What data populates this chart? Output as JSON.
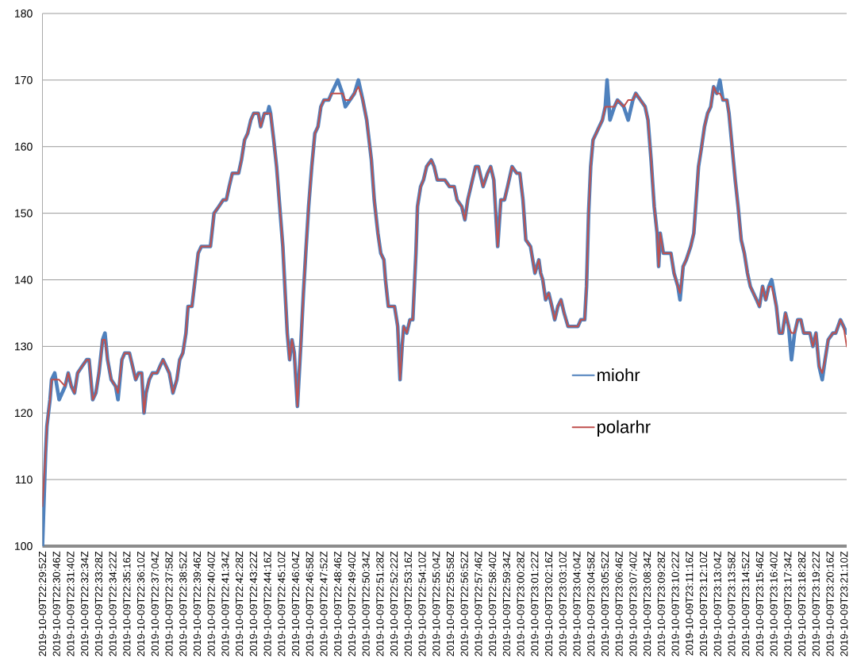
{
  "chart_data": {
    "type": "line",
    "x": [
      "2019-10-09T22:29:52",
      "2019-10-09T22:30:04",
      "2019-10-09T22:30:09",
      "2019-10-09T22:30:21",
      "2019-10-09T22:30:27",
      "2019-10-09T22:30:39",
      "2019-10-09T22:30:56",
      "2019-10-09T22:31:19",
      "2019-10-09T22:31:31",
      "2019-10-09T22:31:43",
      "2019-10-09T22:31:55",
      "2019-10-09T22:32:07",
      "2019-10-09T22:32:24",
      "2019-10-09T22:32:42",
      "2019-10-09T22:32:51",
      "2019-10-09T22:33:05",
      "2019-10-09T22:33:17",
      "2019-10-09T22:33:29",
      "2019-10-09T22:33:43",
      "2019-10-09T22:33:52",
      "2019-10-09T22:34:02",
      "2019-10-09T22:34:16",
      "2019-10-09T22:34:33",
      "2019-10-09T22:34:42",
      "2019-10-09T22:34:57",
      "2019-10-09T22:35:08",
      "2019-10-09T22:35:26",
      "2019-10-09T22:35:38",
      "2019-10-09T22:35:50",
      "2019-10-09T22:36:01",
      "2019-10-09T22:36:13",
      "2019-10-09T22:36:22",
      "2019-10-09T22:36:30",
      "2019-10-09T22:36:42",
      "2019-10-09T22:36:54",
      "2019-10-09T22:37:12",
      "2019-10-09T22:37:23",
      "2019-10-09T22:37:35",
      "2019-10-09T22:37:47",
      "2019-10-09T22:37:59",
      "2019-10-09T22:38:13",
      "2019-10-09T22:38:28",
      "2019-10-09T22:38:39",
      "2019-10-09T22:38:51",
      "2019-10-09T22:39:03",
      "2019-10-09T22:39:11",
      "2019-10-09T22:39:26",
      "2019-10-09T22:39:38",
      "2019-10-09T22:39:50",
      "2019-10-09T22:40:02",
      "2019-10-09T22:40:37",
      "2019-10-09T22:40:51",
      "2019-10-09T22:41:09",
      "2019-10-09T22:41:26",
      "2019-10-09T22:41:38",
      "2019-10-09T22:41:49",
      "2019-10-09T22:42:01",
      "2019-10-09T22:42:25",
      "2019-10-09T22:42:36",
      "2019-10-09T22:42:48",
      "2019-10-09T22:43:00",
      "2019-10-09T22:43:12",
      "2019-10-09T22:43:23",
      "2019-10-09T22:43:41",
      "2019-10-09T22:43:50",
      "2019-10-09T22:44:04",
      "2019-10-09T22:44:16",
      "2019-10-09T22:44:22",
      "2019-10-09T22:44:28",
      "2019-10-09T22:44:40",
      "2019-10-09T22:44:51",
      "2019-10-09T22:45:03",
      "2019-10-09T22:45:15",
      "2019-10-09T22:45:24",
      "2019-10-09T22:45:32",
      "2019-10-09T22:45:41",
      "2019-10-09T22:45:50",
      "2019-10-09T22:45:59",
      "2019-10-09T22:46:11",
      "2019-10-09T22:46:25",
      "2019-10-09T22:46:34",
      "2019-10-09T22:46:43",
      "2019-10-09T22:46:54",
      "2019-10-09T22:47:06",
      "2019-10-09T22:47:18",
      "2019-10-09T22:47:30",
      "2019-10-09T22:47:41",
      "2019-10-09T22:47:53",
      "2019-10-09T22:48:11",
      "2019-10-09T22:48:22",
      "2019-10-09T22:48:46",
      "2019-10-09T22:49:04",
      "2019-10-09T22:49:15",
      "2019-10-09T22:49:33",
      "2019-10-09T22:49:50",
      "2019-10-09T22:50:05",
      "2019-10-09T22:50:22",
      "2019-10-09T22:50:37",
      "2019-10-09T22:50:55",
      "2019-10-09T22:51:06",
      "2019-10-09T22:51:20",
      "2019-10-09T22:51:31",
      "2019-10-09T22:51:43",
      "2019-10-09T22:51:49",
      "2019-10-09T22:52:00",
      "2019-10-09T22:52:24",
      "2019-10-09T22:52:36",
      "2019-10-09T22:52:45",
      "2019-10-09T22:52:53",
      "2019-10-09T22:52:59",
      "2019-10-09T22:53:11",
      "2019-10-09T22:53:23",
      "2019-10-09T22:53:34",
      "2019-10-09T22:53:46",
      "2019-10-09T22:53:52",
      "2019-10-09T22:54:04",
      "2019-10-09T22:54:15",
      "2019-10-09T22:54:27",
      "2019-10-09T22:54:45",
      "2019-10-09T22:54:56",
      "2019-10-09T22:55:08",
      "2019-10-09T22:55:37",
      "2019-10-09T22:55:55",
      "2019-10-09T22:56:13",
      "2019-10-09T22:56:24",
      "2019-10-09T22:56:42",
      "2019-10-09T22:56:54",
      "2019-10-09T22:57:05",
      "2019-10-09T22:57:17",
      "2019-10-09T22:57:35",
      "2019-10-09T22:57:46",
      "2019-10-09T22:58:04",
      "2019-10-09T22:58:21",
      "2019-10-09T22:58:33",
      "2019-10-09T22:58:45",
      "2019-10-09T22:59:00",
      "2019-10-09T22:59:12",
      "2019-10-09T22:59:26",
      "2019-10-09T22:59:38",
      "2019-10-09T22:59:55",
      "2019-10-09T23:00:13",
      "2019-10-09T23:00:25",
      "2019-10-09T23:00:37",
      "2019-10-09T23:00:48",
      "2019-10-09T23:01:06",
      "2019-10-09T23:01:23",
      "2019-10-09T23:01:38",
      "2019-10-09T23:01:45",
      "2019-10-09T23:01:53",
      "2019-10-09T23:02:04",
      "2019-10-09T23:02:16",
      "2019-10-09T23:02:28",
      "2019-10-09T23:02:39",
      "2019-10-09T23:02:51",
      "2019-10-09T23:03:03",
      "2019-10-09T23:03:15",
      "2019-10-09T23:03:30",
      "2019-10-09T23:04:08",
      "2019-10-09T23:04:19",
      "2019-10-09T23:04:34",
      "2019-10-09T23:04:41",
      "2019-10-09T23:04:49",
      "2019-10-09T23:04:57",
      "2019-10-09T23:05:06",
      "2019-10-09T23:05:18",
      "2019-10-09T23:05:30",
      "2019-10-09T23:05:42",
      "2019-10-09T23:05:53",
      "2019-10-09T23:06:00",
      "2019-10-09T23:06:11",
      "2019-10-09T23:06:28",
      "2019-10-09T23:06:40",
      "2019-10-09T23:07:04",
      "2019-10-09T23:07:21",
      "2019-10-09T23:07:39",
      "2019-10-09T23:07:50",
      "2019-10-09T23:08:08",
      "2019-10-09T23:08:26",
      "2019-10-09T23:08:37",
      "2019-10-09T23:08:49",
      "2019-10-09T23:09:01",
      "2019-10-09T23:09:12",
      "2019-10-09T23:09:18",
      "2019-10-09T23:09:24",
      "2019-10-09T23:09:36",
      "2019-10-09T23:09:48",
      "2019-10-09T23:10:05",
      "2019-10-09T23:10:17",
      "2019-10-09T23:10:32",
      "2019-10-09T23:10:40",
      "2019-10-09T23:10:52",
      "2019-10-09T23:11:04",
      "2019-10-09T23:11:21",
      "2019-10-09T23:11:33",
      "2019-10-09T23:11:42",
      "2019-10-09T23:11:51",
      "2019-10-09T23:12:03",
      "2019-10-09T23:12:14",
      "2019-10-09T23:12:26",
      "2019-10-09T23:12:38",
      "2019-10-09T23:12:49",
      "2019-10-09T23:13:01",
      "2019-10-09T23:13:13",
      "2019-10-09T23:13:25",
      "2019-10-09T23:13:40",
      "2019-10-09T23:13:48",
      "2019-10-09T23:14:00",
      "2019-10-09T23:14:12",
      "2019-10-09T23:14:23",
      "2019-10-09T23:14:35",
      "2019-10-09T23:14:47",
      "2019-10-09T23:14:59",
      "2019-10-09T23:15:10",
      "2019-10-09T23:15:22",
      "2019-10-09T23:15:34",
      "2019-10-09T23:15:45",
      "2019-10-09T23:15:57",
      "2019-10-09T23:16:09",
      "2019-10-09T23:16:21",
      "2019-10-09T23:16:32",
      "2019-10-09T23:16:50",
      "2019-10-09T23:17:01",
      "2019-10-09T23:17:13",
      "2019-10-09T23:17:25",
      "2019-10-09T23:17:37",
      "2019-10-09T23:17:48",
      "2019-10-09T23:18:00",
      "2019-10-09T23:18:12",
      "2019-10-09T23:18:24",
      "2019-10-09T23:18:35",
      "2019-10-09T23:18:59",
      "2019-10-09T23:19:10",
      "2019-10-09T23:19:22",
      "2019-10-09T23:19:34",
      "2019-10-09T23:19:46",
      "2019-10-09T23:19:57",
      "2019-10-09T23:20:09",
      "2019-10-09T23:20:27",
      "2019-10-09T23:20:38",
      "2019-10-09T23:20:56",
      "2019-10-09T23:21:08",
      "2019-10-09T23:21:20"
    ],
    "series": [
      {
        "name": "miohr",
        "color": "#4f81bd",
        "values": [
          100,
          114,
          118,
          122,
          125,
          126,
          122,
          124,
          126,
          124,
          123,
          126,
          127,
          128,
          128,
          122,
          123,
          126,
          131,
          132,
          128,
          125,
          124,
          122,
          128,
          129,
          129,
          127,
          125,
          126,
          126,
          120,
          123,
          125,
          126,
          126,
          127,
          128,
          127,
          126,
          123,
          125,
          128,
          129,
          132,
          136,
          136,
          140,
          144,
          145,
          145,
          150,
          151,
          152,
          152,
          154,
          156,
          156,
          158,
          161,
          162,
          164,
          165,
          165,
          163,
          165,
          165,
          166,
          165,
          161,
          157,
          151,
          145,
          138,
          132,
          128,
          131,
          129,
          121,
          131,
          138,
          144,
          151,
          157,
          162,
          163,
          166,
          167,
          167,
          168,
          170,
          168,
          166,
          167,
          168,
          170,
          167,
          164,
          158,
          152,
          147,
          144,
          143,
          140,
          136,
          136,
          133,
          125,
          130,
          133,
          132,
          134,
          134,
          144,
          151,
          154,
          155,
          157,
          158,
          157,
          155,
          155,
          154,
          154,
          152,
          151,
          149,
          152,
          154,
          157,
          157,
          154,
          156,
          157,
          155,
          145,
          152,
          152,
          154,
          157,
          156,
          156,
          152,
          146,
          145,
          141,
          143,
          141,
          140,
          137,
          138,
          136,
          134,
          136,
          137,
          135,
          133,
          133,
          134,
          134,
          139,
          150,
          157,
          161,
          162,
          163,
          164,
          166,
          170,
          164,
          166,
          167,
          166,
          164,
          167,
          168,
          167,
          166,
          164,
          158,
          151,
          147,
          142,
          147,
          144,
          144,
          144,
          141,
          139,
          137,
          142,
          143,
          145,
          147,
          152,
          157,
          160,
          163,
          165,
          166,
          169,
          168,
          170,
          167,
          167,
          165,
          160,
          155,
          151,
          146,
          144,
          141,
          139,
          138,
          137,
          136,
          139,
          137,
          139,
          140,
          136,
          132,
          132,
          135,
          133,
          128,
          132,
          134,
          134,
          132,
          132,
          130,
          132,
          127,
          125,
          128,
          131,
          132,
          132,
          134,
          133,
          132
        ]
      },
      {
        "name": "polarhr",
        "color": "#c0504d",
        "values": [
          106,
          114,
          118,
          122,
          125,
          125,
          125,
          124,
          126,
          124,
          123,
          126,
          127,
          128,
          128,
          122,
          123,
          126,
          131,
          131,
          128,
          125,
          124,
          123,
          128,
          129,
          129,
          127,
          125,
          126,
          126,
          120,
          123,
          125,
          126,
          126,
          127,
          128,
          127,
          126,
          123,
          125,
          128,
          129,
          132,
          136,
          136,
          140,
          144,
          145,
          145,
          150,
          151,
          152,
          152,
          154,
          156,
          156,
          158,
          161,
          162,
          164,
          165,
          165,
          163,
          165,
          165,
          165,
          165,
          161,
          157,
          151,
          145,
          138,
          132,
          128,
          131,
          129,
          121,
          131,
          138,
          144,
          151,
          157,
          162,
          163,
          166,
          167,
          167,
          168,
          168,
          168,
          167,
          167,
          168,
          169,
          167,
          164,
          158,
          152,
          147,
          144,
          143,
          140,
          136,
          136,
          133,
          125,
          130,
          133,
          132,
          134,
          134,
          144,
          151,
          154,
          155,
          157,
          158,
          157,
          155,
          155,
          154,
          154,
          152,
          151,
          149,
          152,
          154,
          157,
          157,
          154,
          156,
          157,
          155,
          145,
          152,
          152,
          154,
          157,
          156,
          156,
          152,
          146,
          145,
          141,
          143,
          141,
          140,
          137,
          138,
          136,
          134,
          136,
          137,
          135,
          133,
          133,
          134,
          134,
          139,
          150,
          157,
          161,
          162,
          163,
          164,
          166,
          166,
          166,
          166,
          167,
          166,
          167,
          167,
          168,
          167,
          166,
          164,
          158,
          151,
          147,
          142,
          147,
          144,
          144,
          144,
          141,
          139,
          138,
          142,
          143,
          145,
          147,
          152,
          157,
          160,
          163,
          165,
          166,
          169,
          168,
          168,
          167,
          167,
          165,
          160,
          155,
          151,
          146,
          144,
          141,
          139,
          138,
          137,
          136,
          139,
          137,
          139,
          139,
          136,
          132,
          132,
          135,
          133,
          132,
          132,
          134,
          134,
          132,
          132,
          130,
          132,
          127,
          126,
          128,
          131,
          132,
          132,
          134,
          133,
          130
        ]
      }
    ],
    "xlim": [
      "2019-10-09T22:29:52",
      "2019-10-09T23:21:20"
    ],
    "xticks": [
      {
        "value": "2019-10-09T22:29:52",
        "label": "2019-10-09T22:29:52Z"
      },
      {
        "value": "2019-10-09T22:30:46",
        "label": "2019-10-09T22:30:46Z"
      },
      {
        "value": "2019-10-09T22:31:40",
        "label": "2019-10-09T22:31:40Z"
      },
      {
        "value": "2019-10-09T22:32:34",
        "label": "2019-10-09T22:32:34Z"
      },
      {
        "value": "2019-10-09T22:33:28",
        "label": "2019-10-09T22:33:28Z"
      },
      {
        "value": "2019-10-09T22:34:22",
        "label": "2019-10-09T22:34:22Z"
      },
      {
        "value": "2019-10-09T22:35:16",
        "label": "2019-10-09T22:35:16Z"
      },
      {
        "value": "2019-10-09T22:36:10",
        "label": "2019-10-09T22:36:10Z"
      },
      {
        "value": "2019-10-09T22:37:04",
        "label": "2019-10-09T22:37:04Z"
      },
      {
        "value": "2019-10-09T22:37:58",
        "label": "2019-10-09T22:37:58Z"
      },
      {
        "value": "2019-10-09T22:38:52",
        "label": "2019-10-09T22:38:52Z"
      },
      {
        "value": "2019-10-09T22:39:46",
        "label": "2019-10-09T22:39:46Z"
      },
      {
        "value": "2019-10-09T22:40:40",
        "label": "2019-10-09T22:40:40Z"
      },
      {
        "value": "2019-10-09T22:41:34",
        "label": "2019-10-09T22:41:34Z"
      },
      {
        "value": "2019-10-09T22:42:28",
        "label": "2019-10-09T22:42:28Z"
      },
      {
        "value": "2019-10-09T22:43:22",
        "label": "2019-10-09T22:43:22Z"
      },
      {
        "value": "2019-10-09T22:44:16",
        "label": "2019-10-09T22:44:16Z"
      },
      {
        "value": "2019-10-09T22:45:10",
        "label": "2019-10-09T22:45:10Z"
      },
      {
        "value": "2019-10-09T22:46:04",
        "label": "2019-10-09T22:46:04Z"
      },
      {
        "value": "2019-10-09T22:46:58",
        "label": "2019-10-09T22:46:58Z"
      },
      {
        "value": "2019-10-09T22:47:52",
        "label": "2019-10-09T22:47:52Z"
      },
      {
        "value": "2019-10-09T22:48:46",
        "label": "2019-10-09T22:48:46Z"
      },
      {
        "value": "2019-10-09T22:49:40",
        "label": "2019-10-09T22:49:40Z"
      },
      {
        "value": "2019-10-09T22:50:34",
        "label": "2019-10-09T22:50:34Z"
      },
      {
        "value": "2019-10-09T22:51:28",
        "label": "2019-10-09T22:51:28Z"
      },
      {
        "value": "2019-10-09T22:52:22",
        "label": "2019-10-09T22:52:22Z"
      },
      {
        "value": "2019-10-09T22:53:16",
        "label": "2019-10-09T22:53:16Z"
      },
      {
        "value": "2019-10-09T22:54:10",
        "label": "2019-10-09T22:54:10Z"
      },
      {
        "value": "2019-10-09T22:55:04",
        "label": "2019-10-09T22:55:04Z"
      },
      {
        "value": "2019-10-09T22:55:58",
        "label": "2019-10-09T22:55:58Z"
      },
      {
        "value": "2019-10-09T22:56:52",
        "label": "2019-10-09T22:56:52Z"
      },
      {
        "value": "2019-10-09T22:57:46",
        "label": "2019-10-09T22:57:46Z"
      },
      {
        "value": "2019-10-09T22:58:40",
        "label": "2019-10-09T22:58:40Z"
      },
      {
        "value": "2019-10-09T22:59:34",
        "label": "2019-10-09T22:59:34Z"
      },
      {
        "value": "2019-10-09T23:00:28",
        "label": "2019-10-09T23:00:28Z"
      },
      {
        "value": "2019-10-09T23:01:22",
        "label": "2019-10-09T23:01:22Z"
      },
      {
        "value": "2019-10-09T23:02:16",
        "label": "2019-10-09T23:02:16Z"
      },
      {
        "value": "2019-10-09T23:03:10",
        "label": "2019-10-09T23:03:10Z"
      },
      {
        "value": "2019-10-09T23:04:04",
        "label": "2019-10-09T23:04:04Z"
      },
      {
        "value": "2019-10-09T23:04:58",
        "label": "2019-10-09T23:04:58Z"
      },
      {
        "value": "2019-10-09T23:05:52",
        "label": "2019-10-09T23:05:52Z"
      },
      {
        "value": "2019-10-09T23:06:46",
        "label": "2019-10-09T23:06:46Z"
      },
      {
        "value": "2019-10-09T23:07:40",
        "label": "2019-10-09T23:07:40Z"
      },
      {
        "value": "2019-10-09T23:08:34",
        "label": "2019-10-09T23:08:34Z"
      },
      {
        "value": "2019-10-09T23:09:28",
        "label": "2019-10-09T23:09:28Z"
      },
      {
        "value": "2019-10-09T23:10:22",
        "label": "2019-10-09T23:10:22Z"
      },
      {
        "value": "2019-10-09T23:11:16",
        "label": "2019-10-09T23:11:16Z"
      },
      {
        "value": "2019-10-09T23:12:10",
        "label": "2019-10-09T23:12:10Z"
      },
      {
        "value": "2019-10-09T23:13:04",
        "label": "2019-10-09T23:13:04Z"
      },
      {
        "value": "2019-10-09T23:13:58",
        "label": "2019-10-09T23:13:58Z"
      },
      {
        "value": "2019-10-09T23:14:52",
        "label": "2019-10-09T23:14:52Z"
      },
      {
        "value": "2019-10-09T23:15:46",
        "label": "2019-10-09T23:15:46Z"
      },
      {
        "value": "2019-10-09T23:16:40",
        "label": "2019-10-09T23:16:40Z"
      },
      {
        "value": "2019-10-09T23:17:34",
        "label": "2019-10-09T23:17:34Z"
      },
      {
        "value": "2019-10-09T23:18:28",
        "label": "2019-10-09T23:18:28Z"
      },
      {
        "value": "2019-10-09T23:19:22",
        "label": "2019-10-09T23:19:22Z"
      },
      {
        "value": "2019-10-09T23:20:16",
        "label": "2019-10-09T23:20:16Z"
      },
      {
        "value": "2019-10-09T23:21:10",
        "label": "2019-10-09T23:21:10Z"
      }
    ],
    "ylim": [
      100,
      180
    ],
    "yticks": [
      100,
      110,
      120,
      130,
      140,
      150,
      160,
      170,
      180
    ],
    "grid": "y",
    "legend": "bottom right"
  }
}
